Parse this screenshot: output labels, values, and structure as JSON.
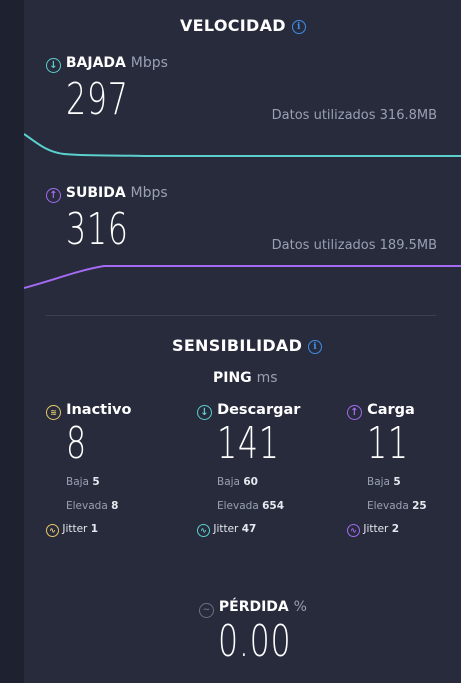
{
  "speed": {
    "title": "VELOCIDAD",
    "download": {
      "label": "BAJADA",
      "unit": "Mbps",
      "value": "297",
      "data_used": "Datos utilizados 316.8MB",
      "color": "#5ccfcf"
    },
    "upload": {
      "label": "SUBIDA",
      "unit": "Mbps",
      "value": "316",
      "data_used": "Datos utilizados 189.5MB",
      "color": "#a46bf2"
    }
  },
  "responsiveness": {
    "title": "SENSIBILIDAD",
    "ping_label": "PING",
    "ping_unit": "ms",
    "columns": [
      {
        "label": "Inactivo",
        "icon": "idle-icon",
        "value": "8",
        "low_label": "Baja",
        "low": "5",
        "high_label": "Elevada",
        "high": "8",
        "jitter_label": "Jitter",
        "jitter": "1",
        "color": "#e8c86a"
      },
      {
        "label": "Descargar",
        "icon": "download-icon",
        "value": "141",
        "low_label": "Baja",
        "low": "60",
        "high_label": "Elevada",
        "high": "654",
        "jitter_label": "Jitter",
        "jitter": "47",
        "color": "#5ccfcf"
      },
      {
        "label": "Carga",
        "icon": "upload-icon",
        "value": "11",
        "low_label": "Baja",
        "low": "5",
        "high_label": "Elevada",
        "high": "25",
        "jitter_label": "Jitter",
        "jitter": "2",
        "color": "#a46bf2"
      }
    ]
  },
  "loss": {
    "label": "PÉRDIDA",
    "unit": "%",
    "value": "0.00"
  }
}
